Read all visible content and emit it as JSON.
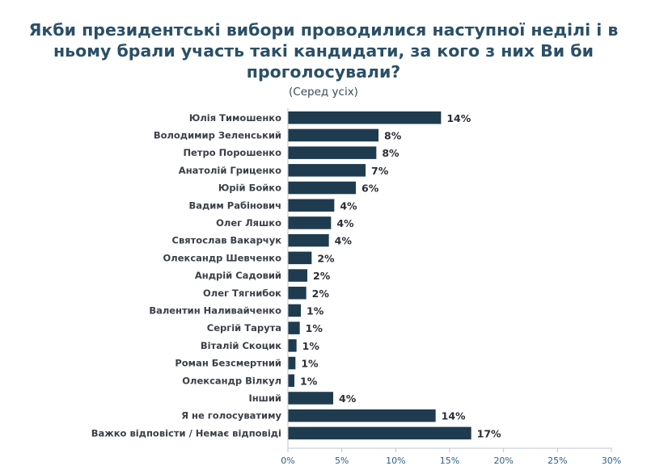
{
  "chart_data": {
    "type": "bar",
    "orientation": "horizontal",
    "title": "Якби президентські вибори проводилися наступної неділі і в ньому брали участь такі кандидати, за кого з них Ви би проголосували?",
    "title_lines": [
      "Якби президентські вибори проводилися наступної неділі і в",
      "ньому брали участь такі кандидати, за кого з них Ви би",
      "проголосували?"
    ],
    "subtitle": "(Серед усіх)",
    "categories": [
      "Юлія Тимошенко",
      "Володимир Зеленський",
      "Петро Порошенко",
      "Анатолій Гриценко",
      "Юрій Бойко",
      "Вадим Рабінович",
      "Олег Ляшко",
      "Святослав Вакарчук",
      "Олександр Шевченко",
      "Андрій Садовий",
      "Олег Тягнибок",
      "Валентин Наливайченко",
      "Сергій Тарута",
      "Віталій Скоцик",
      "Роман Безсмертний",
      "Олександр Вілкул",
      "Інший",
      "Я не голосуватиму",
      "Важко відповісти / Немає відповіді"
    ],
    "values": [
      14.2,
      8.4,
      8.2,
      7.2,
      6.3,
      4.3,
      4.0,
      3.8,
      2.2,
      1.8,
      1.7,
      1.2,
      1.1,
      0.8,
      0.7,
      0.6,
      4.2,
      13.7,
      17.0
    ],
    "value_labels": [
      "14%",
      "8%",
      "8%",
      "7%",
      "6%",
      "4%",
      "4%",
      "4%",
      "2%",
      "2%",
      "2%",
      "1%",
      "1%",
      "1%",
      "1%",
      "1%",
      "4%",
      "14%",
      "17%"
    ],
    "x_ticks": [
      0,
      5,
      10,
      15,
      20,
      25,
      30
    ],
    "x_tick_labels": [
      "0%",
      "5%",
      "10%",
      "15%",
      "20%",
      "25%",
      "30%"
    ],
    "xlim": [
      0,
      30
    ],
    "grid": false,
    "legend": "none",
    "colors": {
      "bar": "#1f3b4f",
      "title": "#2a5068",
      "tick_label": "#2b5f86",
      "axis": "#bfc5cb"
    }
  }
}
